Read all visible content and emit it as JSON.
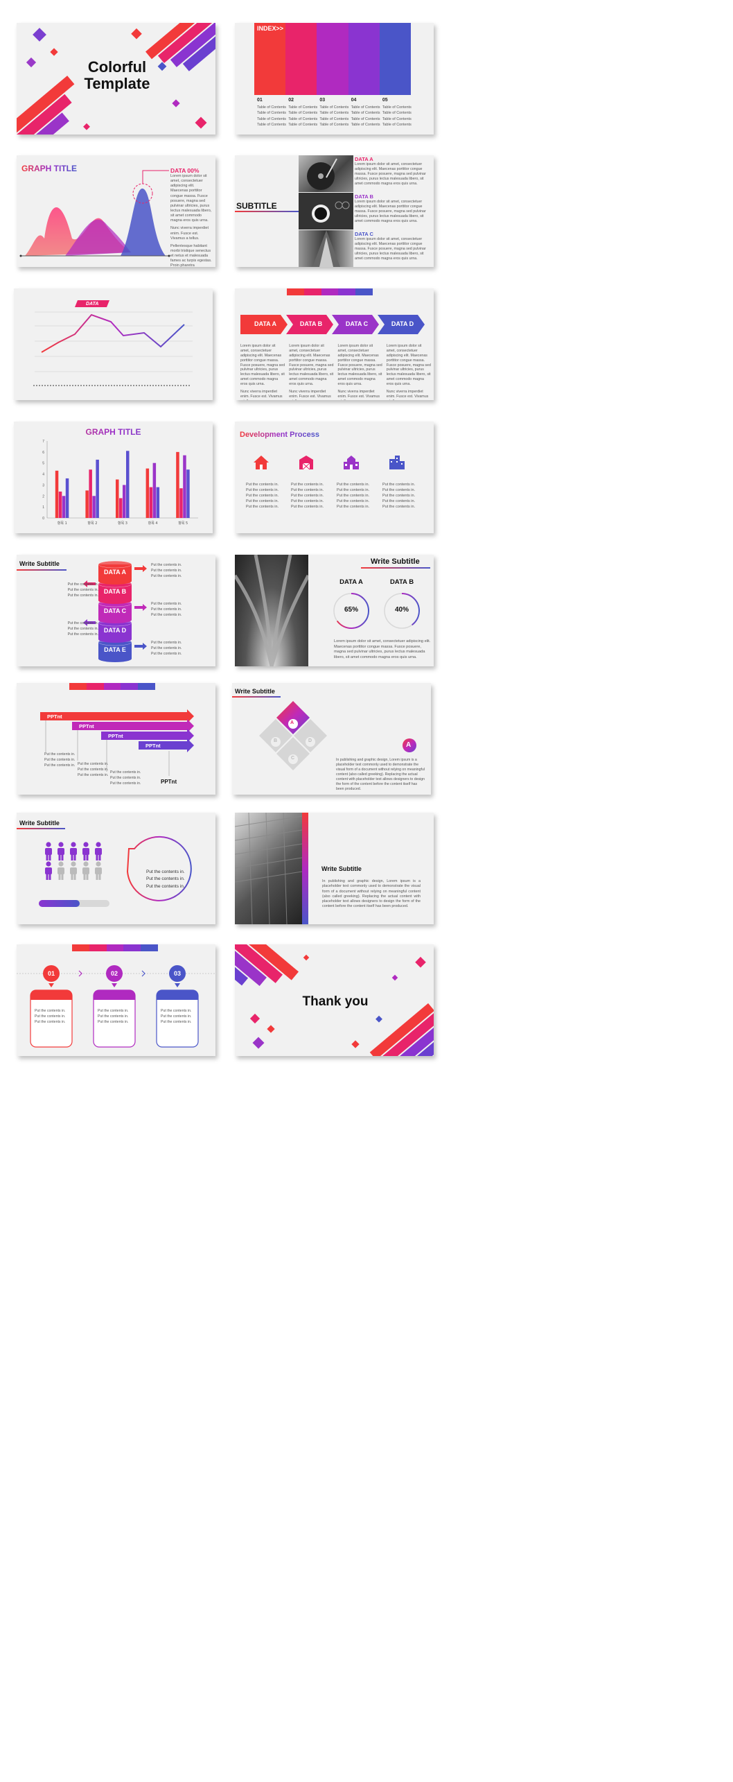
{
  "colors": {
    "red": "#f23a3a",
    "pink": "#e8246a",
    "magenta": "#c02ab8",
    "purple": "#8a34d0",
    "blue": "#4a55c8",
    "gray": "#f1f1f1"
  },
  "s1": {
    "title_line1": "Colorful",
    "title_line2": "Template"
  },
  "s2": {
    "index_label": "INDEX>>",
    "columns": [
      {
        "num": "01",
        "items": [
          "Table of Contents",
          "Table of Contents",
          "Table of Contents",
          "Table of Contents"
        ]
      },
      {
        "num": "02",
        "items": [
          "Table of Contents",
          "Table of Contents",
          "Table of Contents",
          "Table of Contents"
        ]
      },
      {
        "num": "03",
        "items": [
          "Table of Contents",
          "Table of Contents",
          "Table of Contents",
          "Table of Contents"
        ]
      },
      {
        "num": "04",
        "items": [
          "Table of Contents",
          "Table of Contents",
          "Table of Contents",
          "Table of Contents"
        ]
      },
      {
        "num": "05",
        "items": [
          "Table of Contents",
          "Table of Contents",
          "Table of Contents",
          "Table of Contents"
        ]
      }
    ]
  },
  "s3": {
    "title": "GRAPH TITLE",
    "data_label": "DATA 00%",
    "p1": "Lorem ipsum dolor sit amet, consectetuer adipiscing elit. Maecenas porttitor congue massa. Fusce posuere, magna sed pulvinar ultricies, purus lectus malesuada libero, sit amet commodo magna eros quis urna.",
    "p2": "Nunc viverra imperdiet enim. Fusce est. Vivamus a tellus.",
    "p3": "Pellentesque habitant morbi tristique senectus et netus et malesuada fames ac turpis egestas. Proin pharetra nonummy pede. Mauris et orci."
  },
  "s4": {
    "subtitle": "SUBTITLE",
    "items": [
      {
        "title": "DATA A",
        "text": "Lorem ipsum dolor sit amet, consectetuer adipiscing elit. Maecenas porttitor congue massa. Fusce posuere, magna sed pulvinar ultricies, purus lectus malesuada libero, sit amet commodo magna eros quis urna."
      },
      {
        "title": "DATA B",
        "text": "Lorem ipsum dolor sit amet, consectetuer adipiscing elit. Maecenas porttitor congue massa. Fusce posuere, magna sed pulvinar ultricies, purus lectus malesuada libero, sit amet commodo magna eros quis urna."
      },
      {
        "title": "DATA C",
        "text": "Lorem ipsum dolor sit amet, consectetuer adipiscing elit. Maecenas porttitor congue massa. Fusce posuere, magna sed pulvinar ultricies, purus lectus malesuada libero, sit amet commodo magna eros quis urna."
      }
    ]
  },
  "s5": {
    "tag": "DATA"
  },
  "s6": {
    "labels": [
      "DATA A",
      "DATA B",
      "DATA C",
      "DATA D"
    ],
    "p1": "Lorem ipsum dolor sit amet, consectetuer adipiscing elit. Maecenas porttitor congue massa. Fusce posuere, magna sed pulvinar ultricies, purus lectus malesuada libero, sit amet commodo magna eros quis urna.",
    "p2": "Nunc viverra imperdiet enim. Fusce est. Vivamus a tellus."
  },
  "chart_data": {
    "type": "bar",
    "title": "GRAPH TITLE",
    "categories": [
      "항목 1",
      "항목 2",
      "항목 3",
      "항목 4",
      "항목 5"
    ],
    "ylim": [
      0,
      7
    ],
    "yticks": [
      "0",
      "1",
      "2",
      "3",
      "4",
      "5",
      "6",
      "7"
    ],
    "series": [
      {
        "values": [
          4.3,
          2.5,
          3.5,
          4.5,
          6.0
        ]
      },
      {
        "values": [
          2.4,
          4.4,
          1.8,
          2.8,
          2.7
        ]
      },
      {
        "values": [
          2.0,
          2.0,
          3.0,
          5.0,
          5.7
        ]
      },
      {
        "values": [
          3.6,
          5.3,
          6.1,
          2.8,
          4.4
        ]
      }
    ]
  },
  "s8": {
    "title": "Development Process",
    "text": "Put the contents in.",
    "lines": 5
  },
  "s9": {
    "subtitle": "Write Subtitle",
    "labels": [
      "DATA A",
      "DATA B",
      "DATA C",
      "DATA D",
      "DATA E"
    ],
    "text": "Put the contents in."
  },
  "s10": {
    "subtitle": "Write Subtitle",
    "a_label": "DATA A",
    "a_value": "65%",
    "a_level": 0.65,
    "b_label": "DATA B",
    "b_value": "40%",
    "b_level": 0.4,
    "text": "Lorem ipsum dolor sit amet, consectetuer adipiscing elit. Maecenas porttitor congue massa. Fusce posuere, magna sed pulvinar ultricies, purus lectus malesuada libero, sit amet commodo magna eros quis urna."
  },
  "s11": {
    "labels": [
      "PPTnt",
      "PPTnt",
      "PPTnt",
      "PPTnt",
      "PPTnt"
    ],
    "text": "Put the contents in."
  },
  "s12": {
    "subtitle": "Write Subtitle",
    "letters": [
      "A",
      "B",
      "C",
      "D"
    ],
    "badge": "A",
    "text": "In publishing and graphic design, Lorem ipsum is a placeholder text commonly used to demonstrate the visual form of a document without relying on meaningful content (also called greeking). Replacing the actual content with placeholder text allows designers to design the form of the content before the content itself has been produced."
  },
  "s13": {
    "subtitle": "Write Subtitle",
    "text": "Put the contents in.",
    "progress": 0.58
  },
  "s14": {
    "subtitle": "Write Subtitle",
    "text": "In publishing and graphic design, Lorem ipsum is a placeholder text commonly used to demonstrate the visual form of a document without relying on meaningful content (also called greeking). Replacing the actual content with placeholder text allows designers to design the form of the content before the content itself has been produced."
  },
  "s15": {
    "steps": [
      "01",
      "02",
      "03"
    ],
    "text": "Put the contents in."
  },
  "s16": {
    "title": "Thank you"
  }
}
